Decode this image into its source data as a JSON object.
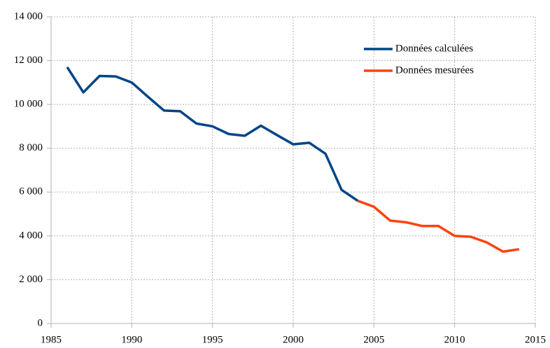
{
  "chart_data": {
    "type": "line",
    "series": [
      {
        "name": "Données calculées",
        "color": "#004586",
        "x": [
          1986,
          1987,
          1988,
          1989,
          1990,
          1991,
          1992,
          1993,
          1994,
          1995,
          1996,
          1997,
          1998,
          1999,
          2000,
          2001,
          2002,
          2003,
          2004
        ],
        "values": [
          11700,
          10550,
          11300,
          11280,
          11000,
          10350,
          9720,
          9690,
          9130,
          9000,
          8650,
          8570,
          9030,
          8600,
          8180,
          8250,
          7750,
          6100,
          5600
        ]
      },
      {
        "name": "Données mesurées",
        "color": "#ff420e",
        "x": [
          2004,
          2005,
          2006,
          2007,
          2008,
          2009,
          2010,
          2011,
          2012,
          2013,
          2014
        ],
        "values": [
          5600,
          5330,
          4700,
          4620,
          4450,
          4450,
          4000,
          3960,
          3700,
          3280,
          3390
        ]
      }
    ],
    "xlim": [
      1985,
      2015
    ],
    "xticks": [
      1985,
      1990,
      1995,
      2000,
      2005,
      2010,
      2015
    ],
    "ylim": [
      0,
      14000
    ],
    "yticks": [
      0,
      {
        "value": 2000,
        "label": "2 000"
      },
      {
        "value": 4000,
        "label": "4 000"
      },
      {
        "value": 6000,
        "label": "6 000"
      },
      {
        "value": 8000,
        "label": "8 000"
      },
      {
        "value": 10000,
        "label": "10 000"
      },
      {
        "value": 12000,
        "label": "12 000"
      },
      {
        "value": 14000,
        "label": "14 000"
      }
    ],
    "grid": true,
    "legend": "top-right"
  }
}
